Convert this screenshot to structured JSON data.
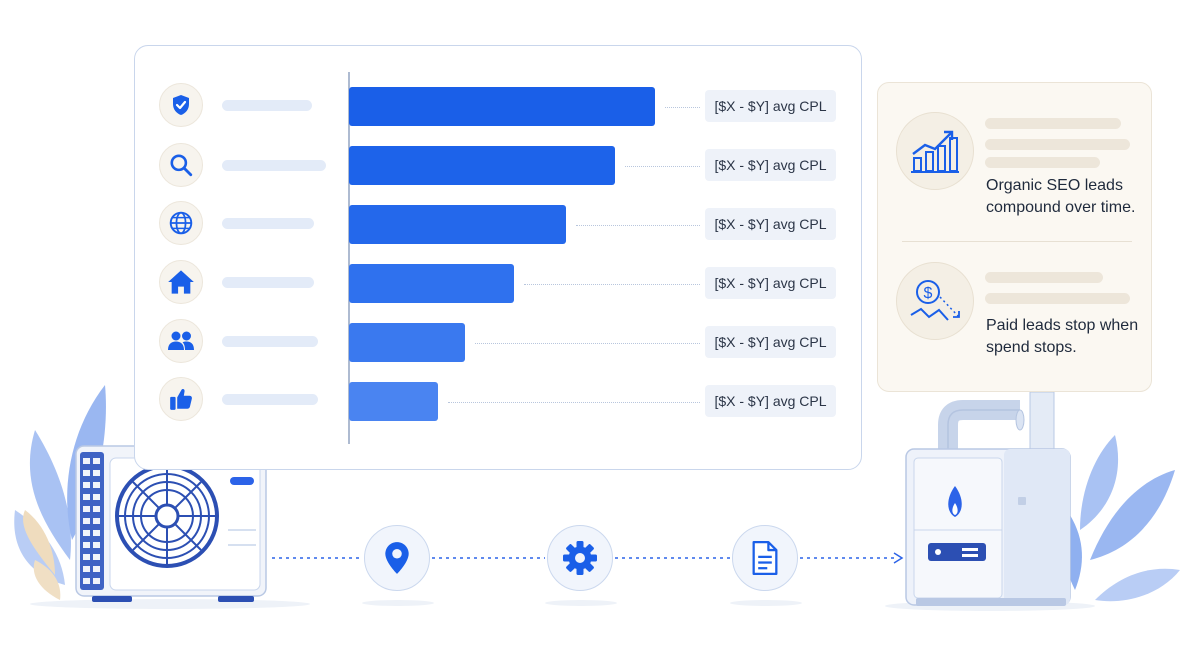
{
  "chart_data": {
    "type": "bar",
    "orientation": "horizontal",
    "categories": [
      "shield-icon",
      "search-icon",
      "globe-icon",
      "house-icon",
      "users-icon",
      "thumbs-up-icon"
    ],
    "values": [
      100,
      87,
      71,
      54,
      38,
      29
    ],
    "value_scale": "relative, unlabeled",
    "data_labels": [
      "[$X - $Y] avg CPL",
      "[$X - $Y] avg CPL",
      "[$X - $Y] avg CPL",
      "[$X - $Y] avg CPL",
      "[$X - $Y] avg CPL",
      "[$X - $Y] avg CPL"
    ],
    "bar_colors": [
      "#1a5fe8",
      "#1d63ea",
      "#2468eb",
      "#2f71ee",
      "#3a79ef",
      "#4a84f1"
    ],
    "title": "",
    "xlabel": "",
    "ylabel": "",
    "grid": false,
    "legend": false
  },
  "info_panel": {
    "items": [
      {
        "icon": "trending-chart-icon",
        "text": "Organic SEO leads compound over time."
      },
      {
        "icon": "dollar-down-trend-icon",
        "text": "Paid leads stop when spend stops."
      }
    ]
  },
  "flow": {
    "start": "ac-condenser-unit",
    "steps": [
      "location-pin-icon",
      "gear-icon",
      "document-icon"
    ],
    "end": "furnace-unit"
  },
  "colors": {
    "accent": "#1a5fe8",
    "light_blue": "#e3ebf8",
    "panel_bg": "#fbf8f2",
    "leaf_blue": "#8fb0f0",
    "leaf_beige": "#eedcc0"
  }
}
